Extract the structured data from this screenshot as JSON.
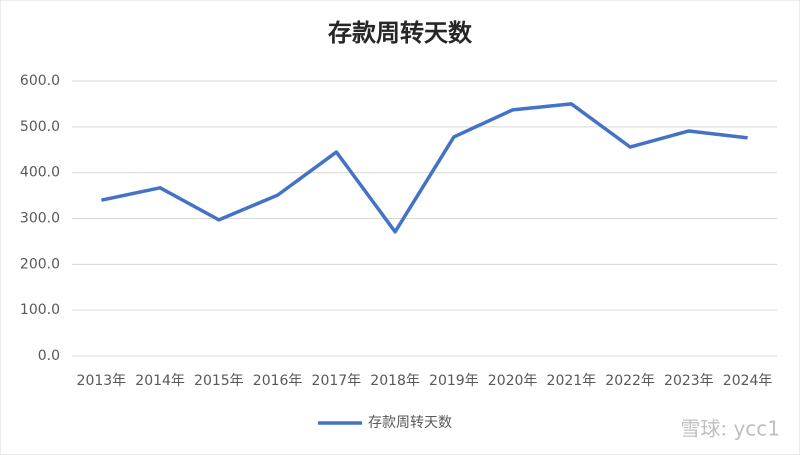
{
  "chart_data": {
    "type": "line",
    "title": "存款周转天数",
    "categories": [
      "2013年",
      "2014年",
      "2015年",
      "2016年",
      "2017年",
      "2018年",
      "2019年",
      "2020年",
      "2021年",
      "2022年",
      "2023年",
      "2024年"
    ],
    "series": [
      {
        "name": "存款周转天数",
        "color": "#4472c4",
        "values": [
          340,
          367,
          297,
          351,
          445,
          271,
          478,
          537,
          550,
          456,
          491,
          476
        ]
      }
    ],
    "ylim": [
      0,
      600
    ],
    "yticks": [
      {
        "value": 0,
        "label": "0.0"
      },
      {
        "value": 100,
        "label": "100.0"
      },
      {
        "value": 200,
        "label": "200.0"
      },
      {
        "value": 300,
        "label": "300.0"
      },
      {
        "value": 400,
        "label": "400.0"
      },
      {
        "value": 500,
        "label": "500.0"
      },
      {
        "value": 600,
        "label": "600.0"
      }
    ],
    "grid": true,
    "legend": "bottom",
    "watermark": "雪球: ycc1"
  }
}
